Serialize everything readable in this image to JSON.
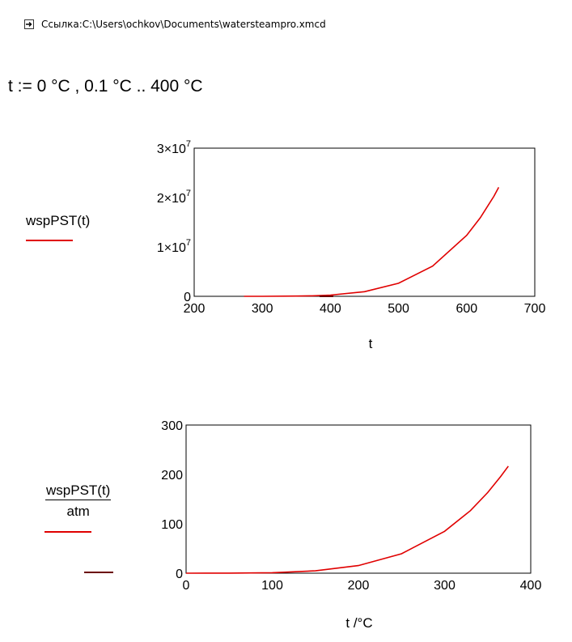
{
  "reference": {
    "icon": "arrow-box-icon",
    "text": "Ссылка:C:\\Users\\ochkov\\Documents\\watersteampro.xmcd"
  },
  "range_definition": "t := 0 °C , 0.1 °C .. 400 °C",
  "plot1": {
    "y_label": "wspPST(t)",
    "x_axis_title": "t"
  },
  "plot2": {
    "y_label_numerator": "wspPST(t)",
    "y_label_denominator": "atm",
    "x_axis_title": "t /°C"
  },
  "trace_color": "#e00000",
  "chart_data": [
    {
      "type": "line",
      "title": "",
      "xlabel": "t",
      "ylabel": "wspPST(t)",
      "xlim": [
        200,
        700
      ],
      "ylim": [
        0,
        30000000
      ],
      "x_ticks": [
        "200",
        "300",
        "400",
        "500",
        "600",
        "700"
      ],
      "y_ticks": [
        "0",
        "1×10^7",
        "2×10^7",
        "3×10^7"
      ],
      "grid": false,
      "series": [
        {
          "x": [
            273.15,
            300,
            350,
            373.15,
            400,
            450,
            500,
            550,
            600,
            620,
            640,
            647
          ],
          "y": [
            611,
            3537,
            41680,
            101418,
            245770,
            932200,
            2639000,
            6117000,
            12345000,
            15901000,
            20267000,
            22064000
          ]
        }
      ]
    },
    {
      "type": "line",
      "title": "",
      "xlabel": "t /°C",
      "ylabel": "wspPST(t) / atm",
      "xlim": [
        0,
        400
      ],
      "ylim": [
        0,
        300
      ],
      "x_ticks": [
        "0",
        "100",
        "200",
        "300",
        "400"
      ],
      "y_ticks": [
        "0",
        "100",
        "200",
        "300"
      ],
      "grid": false,
      "series": [
        {
          "x": [
            0,
            50,
            100,
            150,
            200,
            250,
            300,
            330,
            350,
            365,
            374
          ],
          "y": [
            0.006,
            0.122,
            1.0,
            4.7,
            15.4,
            39.3,
            84.8,
            126.7,
            163.3,
            195.5,
            216.7
          ]
        }
      ]
    }
  ]
}
